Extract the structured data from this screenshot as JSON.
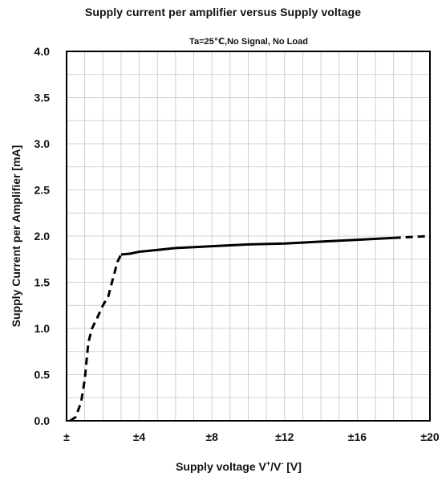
{
  "chart_data": {
    "type": "line",
    "title": "Supply current per amplifier versus Supply voltage",
    "subtitle": "Ta=25℃,No Signal, No Load",
    "xlabel": {
      "main": "Supply voltage V",
      "sup1": "+",
      "mid": "/V",
      "sup2": "-",
      "unit": " [V]"
    },
    "ylabel": "Supply Current per Amplifier [mA]",
    "xlim": [
      0,
      20
    ],
    "ylim": [
      0,
      4.0
    ],
    "x_ticks": [
      0,
      4,
      8,
      12,
      16,
      20
    ],
    "x_tick_labels": [
      "±",
      "±4",
      "±8",
      "±12",
      "±16",
      "±20"
    ],
    "y_ticks": [
      0,
      0.5,
      1.0,
      1.5,
      2.0,
      2.5,
      3.0,
      3.5,
      4.0
    ],
    "y_tick_labels": [
      "0.0",
      "0.5",
      "1.0",
      "1.5",
      "2.0",
      "2.5",
      "3.0",
      "3.5",
      "4.0"
    ],
    "x_minor_grid_step": 1,
    "y_minor_grid_step": 0.25,
    "grid": true,
    "series": [
      {
        "style": "dashed",
        "x": [
          0.2,
          0.5,
          0.8,
          1.0,
          1.1,
          1.2,
          1.4,
          1.7,
          2.0,
          2.3,
          2.5,
          2.8,
          3.0
        ],
        "y": [
          0.0,
          0.04,
          0.2,
          0.45,
          0.65,
          0.85,
          1.0,
          1.12,
          1.25,
          1.35,
          1.5,
          1.72,
          1.8
        ]
      },
      {
        "style": "solid",
        "x": [
          3.0,
          3.5,
          4.0,
          5.0,
          6.0,
          8.0,
          10.0,
          12.0,
          14.0,
          16.0,
          18.0
        ],
        "y": [
          1.8,
          1.81,
          1.83,
          1.85,
          1.87,
          1.89,
          1.91,
          1.92,
          1.94,
          1.96,
          1.98
        ]
      },
      {
        "style": "dashed",
        "x": [
          18.0,
          19.0,
          20.0
        ],
        "y": [
          1.98,
          1.99,
          2.0
        ]
      }
    ]
  }
}
